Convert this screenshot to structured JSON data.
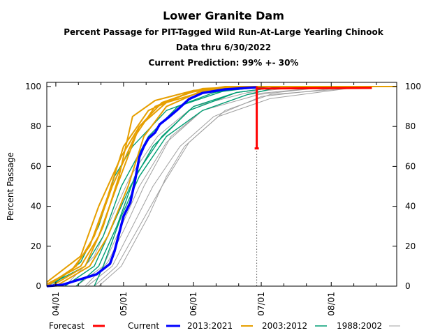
{
  "chart_data": {
    "type": "line",
    "title": "Lower Granite Dam",
    "subtitles": [
      "Percent Passage for PIT-Tagged Wild Run-At-Large Yearling Chinook",
      "Data thru 6/30/2022",
      "Current Prediction: 99% +- 30%"
    ],
    "xlabel": "",
    "ylabel": "Percent Passage",
    "xlim": [
      "03/28",
      "08/30"
    ],
    "ylim": [
      0,
      100
    ],
    "x_tick_labels": [
      "04/01",
      "05/01",
      "06/01",
      "07/01",
      "08/01"
    ],
    "y_ticks": [
      0,
      20,
      40,
      60,
      80,
      100
    ],
    "grid": false,
    "legend_position": "bottom",
    "colors": {
      "Forecast": "#ff0000",
      "Current": "#0000ff",
      "2013:2021": "#e69f00",
      "2003:2012": "#009e73",
      "1988:2002": "#a0a0a0"
    },
    "legend": [
      "Forecast",
      "Current",
      "2013:2021",
      "2003:2012",
      "1988:2002"
    ],
    "forecast": {
      "date": "06/29",
      "value": 99,
      "lower": 69,
      "upper": 100,
      "line_end": "08/19"
    },
    "current": [
      [
        "03/28",
        0
      ],
      [
        "04/04",
        0.7
      ],
      [
        "04/10",
        2.8
      ],
      [
        "04/19",
        5.9
      ],
      [
        "04/25",
        11.2
      ],
      [
        "04/27",
        17.5
      ],
      [
        "04/29",
        26.2
      ],
      [
        "05/01",
        35
      ],
      [
        "05/04",
        42
      ],
      [
        "05/06",
        52.4
      ],
      [
        "05/08",
        64.7
      ],
      [
        "05/10",
        70
      ],
      [
        "05/12",
        74
      ],
      [
        "05/15",
        77
      ],
      [
        "05/17",
        81
      ],
      [
        "05/21",
        84.6
      ],
      [
        "05/25",
        88.5
      ],
      [
        "05/30",
        93.7
      ],
      [
        "06/05",
        96.8
      ],
      [
        "06/15",
        98.6
      ],
      [
        "06/29",
        99.6
      ]
    ],
    "series": [
      {
        "group": "2013:2021",
        "values": [
          [
            "03/28",
            0
          ],
          [
            "04/10",
            10
          ],
          [
            "04/18",
            25
          ],
          [
            "04/26",
            50
          ],
          [
            "05/06",
            75
          ],
          [
            "05/15",
            90
          ],
          [
            "06/01",
            98
          ],
          [
            "06/20",
            100
          ]
        ]
      },
      {
        "group": "2013:2021",
        "values": [
          [
            "03/28",
            1
          ],
          [
            "04/12",
            10
          ],
          [
            "04/20",
            25
          ],
          [
            "04/28",
            50
          ],
          [
            "05/08",
            80
          ],
          [
            "05/18",
            92
          ],
          [
            "06/05",
            99
          ],
          [
            "06/25",
            100
          ]
        ]
      },
      {
        "group": "2013:2021",
        "values": [
          [
            "03/30",
            0
          ],
          [
            "04/14",
            10
          ],
          [
            "04/22",
            30
          ],
          [
            "04/29",
            55
          ],
          [
            "05/05",
            85
          ],
          [
            "05/15",
            93
          ],
          [
            "06/01",
            98
          ],
          [
            "06/20",
            100
          ]
        ]
      },
      {
        "group": "2013:2021",
        "values": [
          [
            "03/28",
            0
          ],
          [
            "04/08",
            8
          ],
          [
            "04/16",
            20
          ],
          [
            "04/24",
            45
          ],
          [
            "05/01",
            70
          ],
          [
            "05/12",
            88
          ],
          [
            "05/30",
            97
          ],
          [
            "06/15",
            100
          ]
        ]
      },
      {
        "group": "2013:2021",
        "values": [
          [
            "04/01",
            0
          ],
          [
            "04/16",
            10
          ],
          [
            "04/24",
            25
          ],
          [
            "05/03",
            50
          ],
          [
            "05/10",
            75
          ],
          [
            "05/20",
            90
          ],
          [
            "06/05",
            98
          ],
          [
            "06/25",
            100
          ]
        ]
      },
      {
        "group": "2013:2021",
        "values": [
          [
            "03/28",
            2
          ],
          [
            "04/12",
            15
          ],
          [
            "04/20",
            40
          ],
          [
            "04/30",
            65
          ],
          [
            "05/08",
            80
          ],
          [
            "05/20",
            92
          ],
          [
            "06/10",
            99
          ],
          [
            "06/30",
            100
          ]
        ]
      },
      {
        "group": "2003:2012",
        "values": [
          [
            "03/28",
            0
          ],
          [
            "04/14",
            10
          ],
          [
            "04/22",
            25
          ],
          [
            "04/30",
            50
          ],
          [
            "05/12",
            75
          ],
          [
            "05/25",
            90
          ],
          [
            "06/15",
            98
          ],
          [
            "07/05",
            100
          ]
        ]
      },
      {
        "group": "2003:2012",
        "values": [
          [
            "04/05",
            0
          ],
          [
            "04/18",
            10
          ],
          [
            "04/26",
            30
          ],
          [
            "05/04",
            50
          ],
          [
            "05/14",
            70
          ],
          [
            "05/30",
            88
          ],
          [
            "06/20",
            97
          ],
          [
            "07/10",
            100
          ]
        ]
      },
      {
        "group": "2003:2012",
        "values": [
          [
            "04/10",
            0
          ],
          [
            "04/20",
            10
          ],
          [
            "04/28",
            30
          ],
          [
            "05/06",
            55
          ],
          [
            "05/18",
            75
          ],
          [
            "06/01",
            90
          ],
          [
            "06/20",
            97
          ],
          [
            "07/10",
            100
          ]
        ]
      },
      {
        "group": "2003:2012",
        "values": [
          [
            "03/30",
            0
          ],
          [
            "04/12",
            12
          ],
          [
            "04/20",
            30
          ],
          [
            "04/27",
            55
          ],
          [
            "05/05",
            70
          ],
          [
            "05/20",
            88
          ],
          [
            "06/10",
            97
          ],
          [
            "07/01",
            100
          ]
        ]
      },
      {
        "group": "2003:2012",
        "values": [
          [
            "04/18",
            0
          ],
          [
            "04/22",
            10
          ],
          [
            "04/30",
            35
          ],
          [
            "05/08",
            55
          ],
          [
            "05/20",
            75
          ],
          [
            "06/05",
            88
          ],
          [
            "06/25",
            96
          ],
          [
            "07/10",
            100
          ]
        ]
      },
      {
        "group": "1988:2002",
        "values": [
          [
            "04/15",
            0
          ],
          [
            "04/26",
            10
          ],
          [
            "05/05",
            30
          ],
          [
            "05/14",
            50
          ],
          [
            "05/26",
            70
          ],
          [
            "06/10",
            85
          ],
          [
            "07/01",
            95
          ],
          [
            "08/10",
            100
          ]
        ]
      },
      {
        "group": "1988:2002",
        "values": [
          [
            "04/18",
            0
          ],
          [
            "04/28",
            10
          ],
          [
            "05/08",
            30
          ],
          [
            "05/18",
            50
          ],
          [
            "05/30",
            72
          ],
          [
            "06/15",
            88
          ],
          [
            "07/05",
            96
          ],
          [
            "08/20",
            100
          ]
        ]
      },
      {
        "group": "1988:2002",
        "values": [
          [
            "04/10",
            0
          ],
          [
            "04/22",
            10
          ],
          [
            "04/30",
            30
          ],
          [
            "05/08",
            50
          ],
          [
            "05/20",
            72
          ],
          [
            "06/05",
            88
          ],
          [
            "06/25",
            96
          ],
          [
            "08/01",
            100
          ]
        ]
      },
      {
        "group": "1988:2002",
        "values": [
          [
            "04/05",
            0
          ],
          [
            "04/18",
            15
          ],
          [
            "04/26",
            35
          ],
          [
            "05/04",
            55
          ],
          [
            "05/16",
            75
          ],
          [
            "06/01",
            90
          ],
          [
            "06/25",
            97
          ],
          [
            "07/20",
            100
          ]
        ]
      },
      {
        "group": "1988:2002",
        "values": [
          [
            "04/20",
            0
          ],
          [
            "04/30",
            10
          ],
          [
            "05/12",
            35
          ],
          [
            "05/20",
            55
          ],
          [
            "05/28",
            70
          ],
          [
            "06/12",
            85
          ],
          [
            "07/05",
            94
          ],
          [
            "08/15",
            100
          ]
        ]
      },
      {
        "group": "1988:2002",
        "values": [
          [
            "04/14",
            0
          ],
          [
            "04/24",
            12
          ],
          [
            "05/02",
            30
          ],
          [
            "05/10",
            50
          ],
          [
            "05/22",
            75
          ],
          [
            "06/05",
            88
          ],
          [
            "06/30",
            96
          ],
          [
            "08/01",
            100
          ]
        ]
      }
    ]
  }
}
